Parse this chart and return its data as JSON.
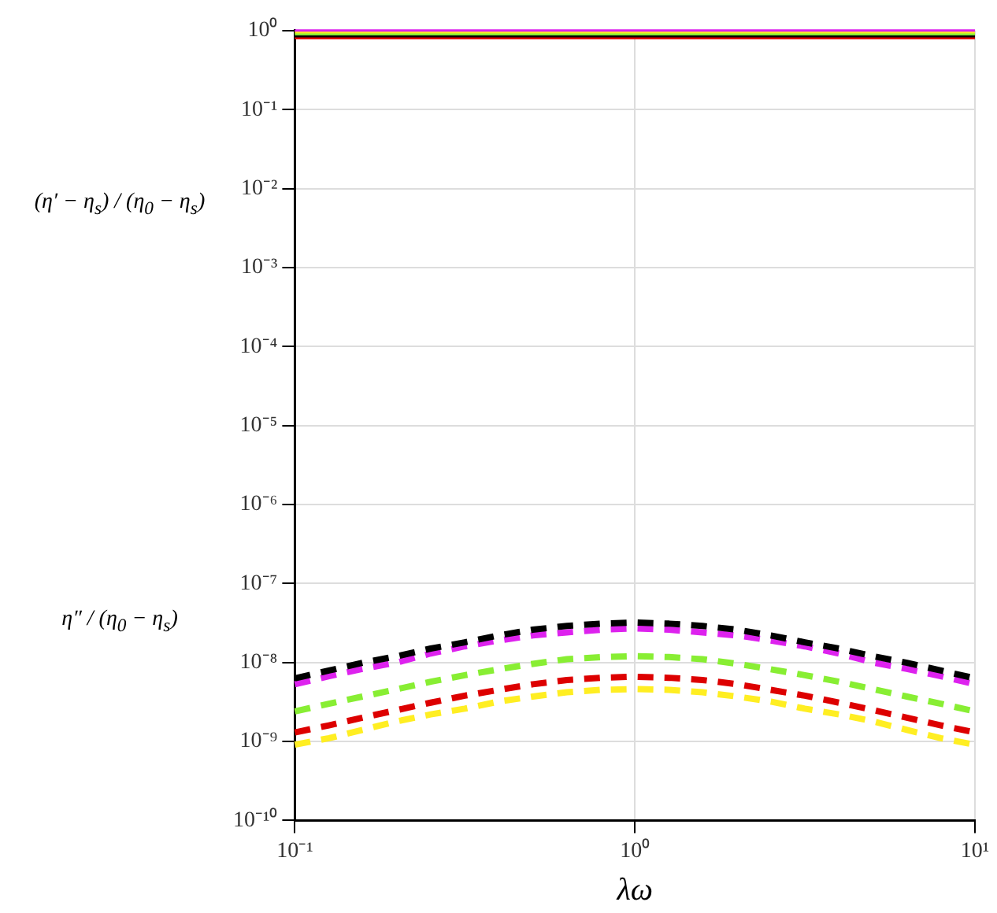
{
  "chart_data": {
    "type": "line",
    "xlabel": "λω",
    "ylabel": "(η′ − η$_{s}$) / (η$_{0}$ − η$_{s}$)",
    "annotations": [
      "η″ / (η$_{0}$ − η$_{s}$)"
    ],
    "x": [
      0.1,
      0.126,
      0.158,
      0.2,
      0.251,
      0.316,
      0.398,
      0.501,
      0.631,
      0.794,
      1,
      1.26,
      1.58,
      2,
      2.51,
      3.16,
      3.98,
      5.01,
      6.31,
      7.94,
      10
    ],
    "series": [
      {
        "type": "line",
        "color": "#dd22ee",
        "line_style": "solid",
        "values": [
          1,
          1,
          1,
          1,
          1,
          1,
          1,
          1,
          1,
          1,
          1,
          1,
          1,
          1,
          1,
          1,
          1,
          1,
          1,
          1,
          1
        ]
      },
      {
        "type": "line",
        "color": "#ffee22",
        "line_style": "solid",
        "values": [
          0.95,
          0.95,
          0.95,
          0.95,
          0.95,
          0.95,
          0.95,
          0.95,
          0.95,
          0.95,
          0.95,
          0.95,
          0.95,
          0.95,
          0.95,
          0.95,
          0.95,
          0.95,
          0.95,
          0.95,
          0.95
        ]
      },
      {
        "type": "line",
        "color": "#88ee33",
        "line_style": "solid",
        "values": [
          0.9,
          0.9,
          0.9,
          0.9,
          0.9,
          0.9,
          0.9,
          0.9,
          0.9,
          0.9,
          0.9,
          0.9,
          0.9,
          0.9,
          0.9,
          0.9,
          0.9,
          0.9,
          0.9,
          0.9,
          0.9
        ]
      },
      {
        "type": "line",
        "color": "#000000",
        "line_style": "solid",
        "values": [
          0.85,
          0.85,
          0.85,
          0.85,
          0.85,
          0.85,
          0.85,
          0.85,
          0.85,
          0.85,
          0.85,
          0.85,
          0.85,
          0.85,
          0.85,
          0.85,
          0.85,
          0.85,
          0.85,
          0.85,
          0.85
        ]
      },
      {
        "type": "line",
        "color": "#dd0000",
        "line_style": "solid",
        "values": [
          0.8,
          0.8,
          0.8,
          0.8,
          0.8,
          0.8,
          0.8,
          0.8,
          0.8,
          0.8,
          0.8,
          0.8,
          0.8,
          0.8,
          0.8,
          0.8,
          0.8,
          0.8,
          0.8,
          0.8,
          0.8
        ]
      },
      {
        "type": "line",
        "color": "#000000",
        "line_style": "dashed",
        "values": [
          6.3e-09,
          7.9e-09,
          9.9e-09,
          1.2e-08,
          1.5e-08,
          1.8e-08,
          2.2e-08,
          2.6e-08,
          2.9e-08,
          3.1e-08,
          3.2e-08,
          3.1e-08,
          2.9e-08,
          2.6e-08,
          2.2e-08,
          1.8e-08,
          1.5e-08,
          1.2e-08,
          9.9e-09,
          7.9e-09,
          6.3e-09
        ]
      },
      {
        "type": "line",
        "color": "#dd22ee",
        "line_style": "dashed",
        "values": [
          5.3e-09,
          6.7e-09,
          8.3e-09,
          1e-08,
          1.3e-08,
          1.6e-08,
          1.9e-08,
          2.2e-08,
          2.4e-08,
          2.6e-08,
          2.7e-08,
          2.6e-08,
          2.4e-08,
          2.2e-08,
          1.9e-08,
          1.6e-08,
          1.3e-08,
          1e-08,
          8.3e-09,
          6.7e-09,
          5.3e-09
        ]
      },
      {
        "type": "line",
        "color": "#88ee33",
        "line_style": "dashed",
        "values": [
          2.4e-09,
          3e-09,
          3.7e-09,
          4.6e-09,
          5.7e-09,
          6.9e-09,
          8.2e-09,
          9.6e-09,
          1.1e-08,
          1.17e-08,
          1.2e-08,
          1.17e-08,
          1.1e-08,
          9.6e-09,
          8.2e-09,
          6.9e-09,
          5.7e-09,
          4.6e-09,
          3.7e-09,
          3e-09,
          2.4e-09
        ]
      },
      {
        "type": "line",
        "color": "#dd0000",
        "line_style": "dashed",
        "values": [
          1.3e-09,
          1.6e-09,
          2e-09,
          2.5e-09,
          3.1e-09,
          3.8e-09,
          4.5e-09,
          5.3e-09,
          6e-09,
          6.4e-09,
          6.6e-09,
          6.4e-09,
          6e-09,
          5.3e-09,
          4.5e-09,
          3.8e-09,
          3.1e-09,
          2.5e-09,
          2e-09,
          1.6e-09,
          1.3e-09
        ]
      },
      {
        "type": "line",
        "color": "#ffee22",
        "line_style": "dashed",
        "values": [
          9.1e-10,
          1.1e-09,
          1.4e-09,
          1.8e-09,
          2.2e-09,
          2.6e-09,
          3.2e-09,
          3.7e-09,
          4.2e-09,
          4.5e-09,
          4.6e-09,
          4.5e-09,
          4.2e-09,
          3.7e-09,
          3.2e-09,
          2.6e-09,
          2.2e-09,
          1.8e-09,
          1.4e-09,
          1.1e-09,
          9.1e-10
        ]
      }
    ],
    "log": "xy",
    "xlim": [
      0.1,
      10
    ],
    "ylim": [
      1e-10,
      1
    ],
    "xticks": [
      {
        "value": 0.1,
        "label": "10⁻¹"
      },
      {
        "value": 1,
        "label": "10⁰"
      },
      {
        "value": 10,
        "label": "10¹"
      }
    ],
    "yticks": [
      {
        "value": 1e-10,
        "label": "10⁻¹⁰"
      },
      {
        "value": 1e-09,
        "label": "10⁻⁹"
      },
      {
        "value": 1e-08,
        "label": "10⁻⁸"
      },
      {
        "value": 1e-07,
        "label": "10⁻⁷"
      },
      {
        "value": 1e-06,
        "label": "10⁻⁶"
      },
      {
        "value": 1e-05,
        "label": "10⁻⁵"
      },
      {
        "value": 0.0001,
        "label": "10⁻⁴"
      },
      {
        "value": 0.001,
        "label": "10⁻³"
      },
      {
        "value": 0.01,
        "label": "10⁻²"
      },
      {
        "value": 0.1,
        "label": "10⁻¹"
      },
      {
        "value": 1,
        "label": "10⁰"
      }
    ],
    "grid": true,
    "legend": false,
    "marker": "none"
  }
}
